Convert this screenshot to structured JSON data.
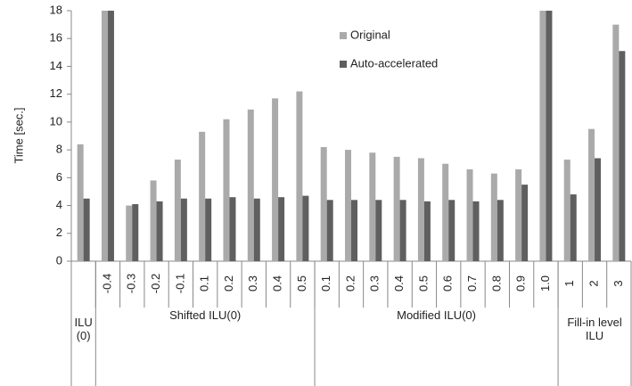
{
  "chart_data": {
    "type": "bar",
    "y_label": "Time [sec.]",
    "groups": [
      {
        "label": "ILU (0)",
        "categories": [
          null
        ]
      },
      {
        "label": "Shifted ILU(0)",
        "categories": [
          "-0.4",
          "-0.3",
          "-0.2",
          "-0.1",
          "0.1",
          "0.2",
          "0.3",
          "0.4",
          "0.5"
        ]
      },
      {
        "label": "Modified ILU(0)",
        "categories": [
          "0.1",
          "0.2",
          "0.3",
          "0.4",
          "0.5",
          "0.6",
          "0.7",
          "0.8",
          "0.9",
          "1.0"
        ]
      },
      {
        "label": "Fill-in level ILU",
        "categories": [
          "1",
          "2",
          "3"
        ]
      }
    ],
    "series": [
      {
        "name": "Original",
        "color": "#aaaaaa",
        "values": [
          8.4,
          18,
          4.0,
          5.8,
          7.3,
          9.3,
          10.2,
          10.9,
          11.7,
          12.2,
          8.2,
          8.0,
          7.8,
          7.5,
          7.4,
          7.0,
          6.6,
          6.3,
          6.6,
          18,
          7.3,
          9.5,
          17.0
        ]
      },
      {
        "name": "Auto-accelerated",
        "color": "#5f5f5f",
        "values": [
          4.5,
          18,
          4.1,
          4.3,
          4.5,
          4.5,
          4.6,
          4.5,
          4.6,
          4.7,
          4.4,
          4.4,
          4.4,
          4.4,
          4.3,
          4.4,
          4.3,
          4.4,
          5.5,
          18,
          4.8,
          7.4,
          15.1
        ]
      }
    ],
    "ylim": [
      0,
      18
    ],
    "yticks": [
      0,
      2,
      4,
      6,
      8,
      10,
      12,
      14,
      16,
      18
    ],
    "grid": false,
    "legend": "top"
  }
}
